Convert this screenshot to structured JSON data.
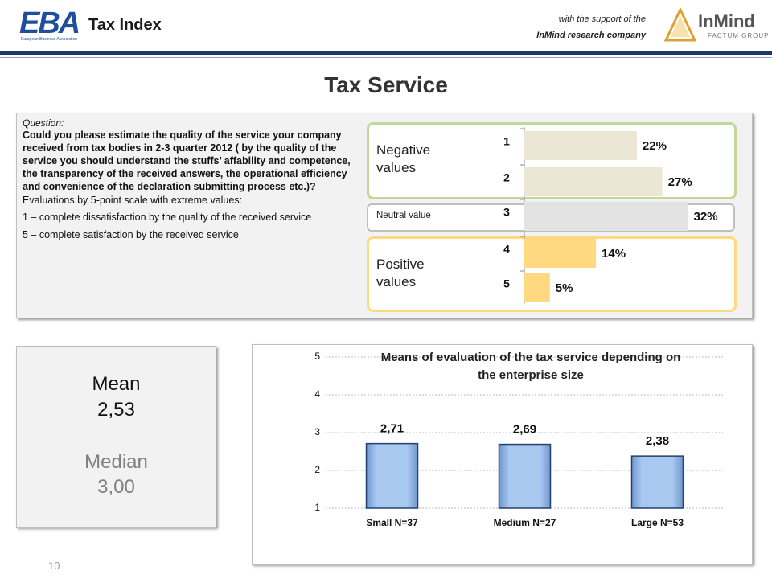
{
  "header": {
    "logo_left": "EBA",
    "logo_left_sub": "European Business Association",
    "title": "Tax Index",
    "support_line1": "with the support of the",
    "support_line2": "InMind research company",
    "logo_right": "InMind",
    "logo_right_sub": "FACTUM GROUP"
  },
  "slide_title": "Tax Service",
  "question": {
    "label": "Question:",
    "text": "Could you please estimate the quality of the service your company received from tax bodies in 2-3 quarter 2012 ( by the quality of the service you should understand the stuffs’ affability and competence, the transparency of the received answers, the operational efficiency and convenience of the declaration submitting process etc.)?",
    "scale": "Evaluations by 5-point scale with extreme values:",
    "low": "1 – complete dissatisfaction by the quality of the received service",
    "high": "5 – complete satisfaction by the received service"
  },
  "summary": {
    "mean_label": "Mean",
    "mean_value": "2,53",
    "median_label": "Median",
    "median_value": "3,00"
  },
  "page_number": "10",
  "chart_data": [
    {
      "type": "hbar",
      "categories": [
        "1",
        "2",
        "3",
        "4",
        "5"
      ],
      "values": [
        22,
        27,
        32,
        14,
        5
      ],
      "value_labels": [
        "22%",
        "27%",
        "32%",
        "14%",
        "5%"
      ],
      "colors": [
        "#ece7d5",
        "#ece7d5",
        "#e3e3e3",
        "#ffd97f",
        "#ffd97f"
      ],
      "group_labels": [
        "Negative values",
        "Neutral value",
        "Positive values"
      ]
    },
    {
      "type": "bar",
      "title": "Means of evaluation of the tax service depending on the enterprise size",
      "categories": [
        "Small N=37",
        "Medium N=27",
        "Large N=53"
      ],
      "values": [
        2.71,
        2.69,
        2.38
      ],
      "value_labels": [
        "2,71",
        "2,69",
        "2,38"
      ],
      "color": "#95b8e6",
      "ylim": [
        1,
        5
      ],
      "yticks": [
        1,
        2,
        3,
        4,
        5
      ],
      "grid": true
    }
  ]
}
